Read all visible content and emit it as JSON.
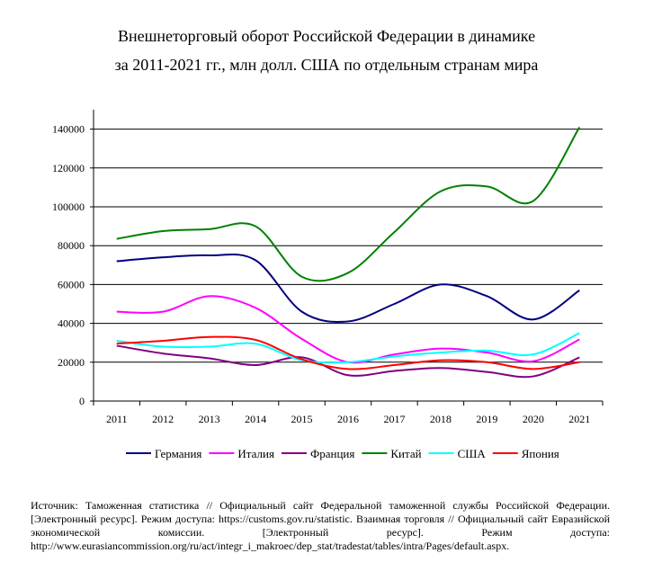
{
  "chart_data": {
    "type": "line",
    "title": "Внешнеторговый оборот Российской Федерации в динамике",
    "subtitle": "за 2011-2021 гг., млн долл. США по отдельным странам мира",
    "xlabel": "",
    "ylabel": "",
    "categories": [
      "2011",
      "2012",
      "2013",
      "2014",
      "2015",
      "2016",
      "2017",
      "2018",
      "2019",
      "2020",
      "2021"
    ],
    "ylim": [
      0,
      150000
    ],
    "yticks": [
      0,
      20000,
      40000,
      60000,
      80000,
      100000,
      120000,
      140000
    ],
    "ytick_labels": [
      "0",
      "20000",
      "40000",
      "60000",
      "80000",
      "100000",
      "120000",
      "140000"
    ],
    "grid": true,
    "smooth": true,
    "legend_position": "bottom",
    "series": [
      {
        "name": "Германия",
        "color": "#000080",
        "values": [
          72000,
          74000,
          75000,
          72500,
          46000,
          41000,
          50000,
          60000,
          54000,
          42000,
          57000
        ]
      },
      {
        "name": "Италия",
        "color": "#FF00FF",
        "values": [
          46000,
          46000,
          54000,
          48000,
          32000,
          20000,
          24000,
          27000,
          25000,
          20500,
          31700
        ]
      },
      {
        "name": "Франция",
        "color": "#800080",
        "values": [
          28500,
          24500,
          22000,
          18500,
          22500,
          13300,
          15500,
          17000,
          15000,
          12700,
          22500
        ]
      },
      {
        "name": "Китай",
        "color": "#008000",
        "values": [
          83500,
          87500,
          88500,
          90000,
          64000,
          66000,
          87000,
          108000,
          110500,
          103000,
          141000
        ]
      },
      {
        "name": "США",
        "color": "#00FFFF",
        "values": [
          31000,
          28000,
          28000,
          29500,
          21000,
          20000,
          23000,
          25000,
          26000,
          24000,
          35000
        ]
      },
      {
        "name": "Япония",
        "color": "#FF0000",
        "values": [
          29600,
          31000,
          33000,
          31500,
          21500,
          16500,
          18500,
          21000,
          20000,
          16500,
          20000
        ]
      }
    ]
  },
  "source": "Источник: Таможенная статистика // Официальный сайт Федеральной таможенной службы Российской Федерации. [Электронный ресурс]. Режим доступа: https://customs.gov.ru/statistic. Взаимная торговля // Официальный сайт Евразийской экономической комиссии. [Электронный ресурс]. Режим доступа: http://www.eurasiancommission.org/ru/act/integr_i_makroec/dep_stat/tradestat/tables/intra/Pages/default.aspx."
}
